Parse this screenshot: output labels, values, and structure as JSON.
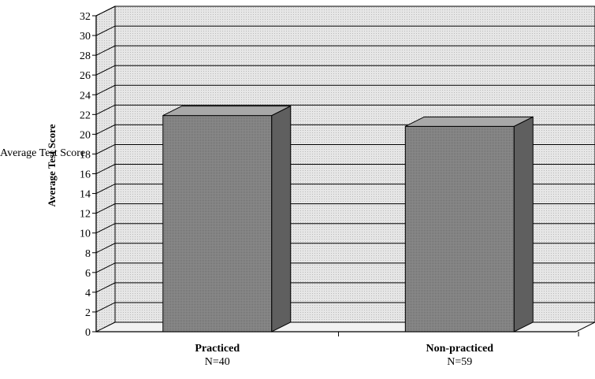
{
  "chart_data": {
    "type": "bar",
    "three_d": true,
    "categories": [
      "Practiced",
      "Non-practiced"
    ],
    "category_sublabels": [
      "N=40",
      "N=59"
    ],
    "values": [
      21.9,
      20.8
    ],
    "ylabel": "Average Test Score",
    "ylabel_duplicate": "Average Test Score",
    "ylim": [
      0,
      32
    ],
    "yticks": [
      0,
      2,
      4,
      6,
      8,
      10,
      12,
      14,
      16,
      18,
      20,
      22,
      24,
      26,
      28,
      30,
      32
    ],
    "grid": true,
    "legend": "none",
    "colors": {
      "bar_front": "#7d7d7d",
      "bar_side": "#5f5f5f",
      "bar_top": "#a8a8a8",
      "wall": "#dcdcdc",
      "floor": "#f2f2f2",
      "gridline": "#000000"
    }
  }
}
